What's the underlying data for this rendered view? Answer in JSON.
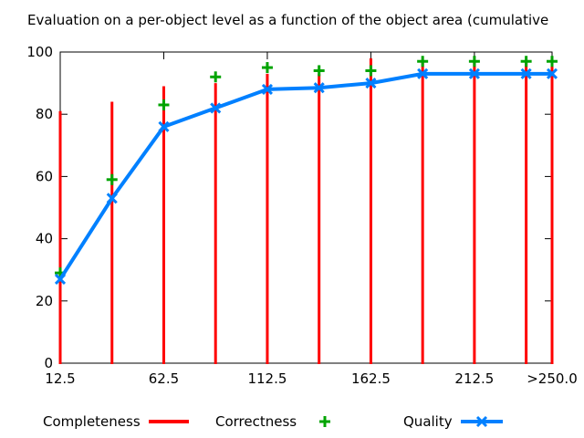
{
  "title": "Evaluation on a per-object level as a function of the object area (cumulative",
  "colors": {
    "background": "#ffffff",
    "axis": "#000000",
    "completeness": "#ff0000",
    "correctness": "#00a400",
    "quality": "#0080ff"
  },
  "chart_data": {
    "type": "line",
    "title": "Evaluation on a per-object level as a function of the object area (cumulative",
    "xlabel": "",
    "ylabel": "",
    "xlim": [
      12.5,
      250
    ],
    "ylim": [
      0,
      100
    ],
    "grid": false,
    "legend_position": "below-plot",
    "x": [
      12.5,
      37.5,
      62.5,
      87.5,
      112.5,
      137.5,
      162.5,
      187.5,
      212.5,
      237.5,
      250
    ],
    "x_ticks": [
      12.5,
      62.5,
      112.5,
      162.5,
      212.5,
      250
    ],
    "x_tick_labels": [
      "12.5",
      "62.5",
      "112.5",
      "162.5",
      "212.5",
      ">250.0"
    ],
    "y_ticks": [
      0,
      20,
      40,
      60,
      80,
      100
    ],
    "y_tick_labels": [
      "0",
      "20",
      "40",
      "60",
      "80",
      "100"
    ],
    "series": [
      {
        "name": "Completeness",
        "style": "impulses",
        "color": "#ff0000",
        "values": [
          81,
          84,
          89,
          90,
          93,
          93,
          98,
          97,
          97,
          97,
          97
        ]
      },
      {
        "name": "Correctness",
        "style": "points-plus",
        "color": "#00a400",
        "values": [
          29,
          59,
          83,
          92,
          95,
          94,
          94,
          97,
          97,
          97,
          97
        ]
      },
      {
        "name": "Quality",
        "style": "line-x-markers",
        "color": "#0080ff",
        "values": [
          27,
          53,
          76,
          82,
          88,
          88.5,
          90,
          93,
          93,
          93,
          93
        ]
      }
    ]
  }
}
